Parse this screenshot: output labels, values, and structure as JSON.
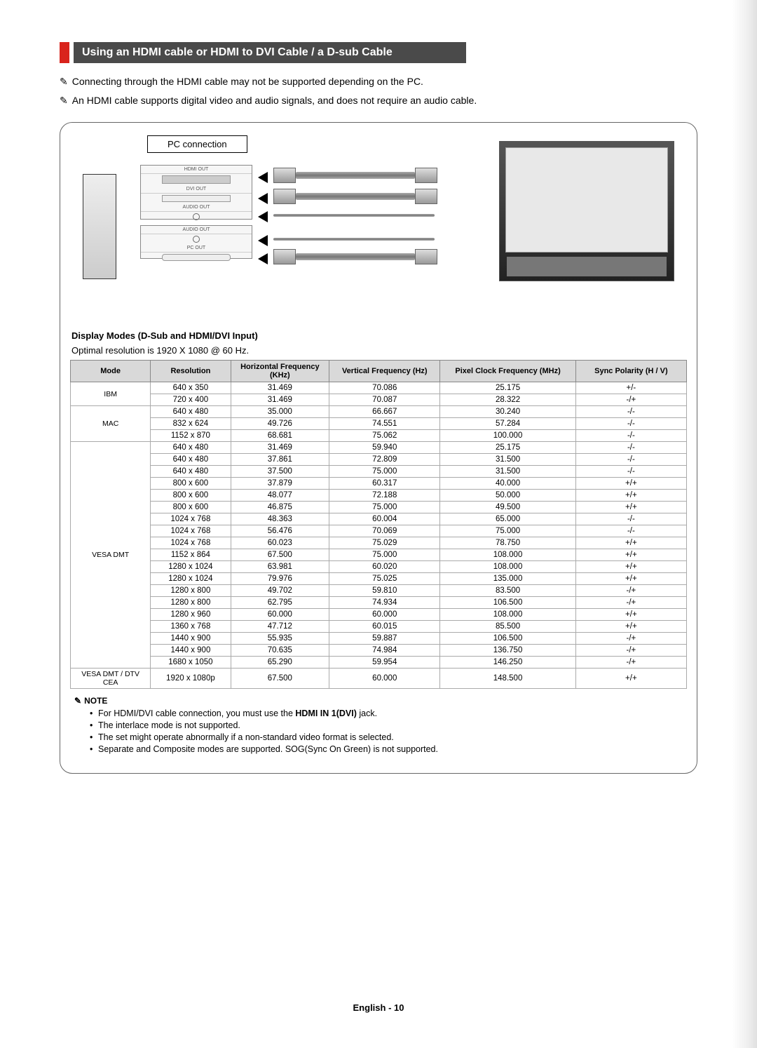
{
  "title": "Using an HDMI cable or HDMI to DVI Cable / a D-sub Cable",
  "intro_notes": [
    "Connecting through the HDMI cable may not be supported depending on the PC.",
    "An HDMI cable supports digital video and audio signals, and does not require an audio cable."
  ],
  "diagram": {
    "pc_connection_label": "PC connection",
    "ports": [
      "HDMI OUT",
      "DVI OUT",
      "AUDIO OUT",
      "AUDIO OUT",
      "PC OUT"
    ]
  },
  "display_modes_heading": "Display Modes (D-Sub and HDMI/DVI Input)",
  "optimal_text": "Optimal resolution is 1920 X 1080 @ 60 Hz.",
  "table": {
    "columns": [
      "Mode",
      "Resolution",
      "Horizontal Frequency (KHz)",
      "Vertical Frequency (Hz)",
      "Pixel Clock Frequency (MHz)",
      "Sync Polarity (H / V)"
    ],
    "groups": [
      {
        "mode": "IBM",
        "rows": [
          [
            "640 x 350",
            "31.469",
            "70.086",
            "25.175",
            "+/-"
          ],
          [
            "720 x 400",
            "31.469",
            "70.087",
            "28.322",
            "-/+"
          ]
        ]
      },
      {
        "mode": "MAC",
        "rows": [
          [
            "640 x 480",
            "35.000",
            "66.667",
            "30.240",
            "-/-"
          ],
          [
            "832 x 624",
            "49.726",
            "74.551",
            "57.284",
            "-/-"
          ],
          [
            "1152 x 870",
            "68.681",
            "75.062",
            "100.000",
            "-/-"
          ]
        ]
      },
      {
        "mode": "VESA DMT",
        "rows": [
          [
            "640 x 480",
            "31.469",
            "59.940",
            "25.175",
            "-/-"
          ],
          [
            "640 x 480",
            "37.861",
            "72.809",
            "31.500",
            "-/-"
          ],
          [
            "640 x 480",
            "37.500",
            "75.000",
            "31.500",
            "-/-"
          ],
          [
            "800 x 600",
            "37.879",
            "60.317",
            "40.000",
            "+/+"
          ],
          [
            "800 x 600",
            "48.077",
            "72.188",
            "50.000",
            "+/+"
          ],
          [
            "800 x 600",
            "46.875",
            "75.000",
            "49.500",
            "+/+"
          ],
          [
            "1024 x 768",
            "48.363",
            "60.004",
            "65.000",
            "-/-"
          ],
          [
            "1024 x 768",
            "56.476",
            "70.069",
            "75.000",
            "-/-"
          ],
          [
            "1024 x 768",
            "60.023",
            "75.029",
            "78.750",
            "+/+"
          ],
          [
            "1152 x 864",
            "67.500",
            "75.000",
            "108.000",
            "+/+"
          ],
          [
            "1280 x 1024",
            "63.981",
            "60.020",
            "108.000",
            "+/+"
          ],
          [
            "1280 x 1024",
            "79.976",
            "75.025",
            "135.000",
            "+/+"
          ],
          [
            "1280 x 800",
            "49.702",
            "59.810",
            "83.500",
            "-/+"
          ],
          [
            "1280 x 800",
            "62.795",
            "74.934",
            "106.500",
            "-/+"
          ],
          [
            "1280 x 960",
            "60.000",
            "60.000",
            "108.000",
            "+/+"
          ],
          [
            "1360 x 768",
            "47.712",
            "60.015",
            "85.500",
            "+/+"
          ],
          [
            "1440 x 900",
            "55.935",
            "59.887",
            "106.500",
            "-/+"
          ],
          [
            "1440 x 900",
            "70.635",
            "74.984",
            "136.750",
            "-/+"
          ],
          [
            "1680 x 1050",
            "65.290",
            "59.954",
            "146.250",
            "-/+"
          ]
        ]
      },
      {
        "mode": "VESA DMT / DTV CEA",
        "rows": [
          [
            "1920 x 1080p",
            "67.500",
            "60.000",
            "148.500",
            "+/+"
          ]
        ]
      }
    ],
    "col_widths": [
      "13%",
      "13%",
      "16%",
      "18%",
      "22%",
      "18%"
    ],
    "header_bg": "#d9d9d9",
    "border_color": "#aaaaaa"
  },
  "note_label": "NOTE",
  "notes": [
    "For HDMI/DVI cable connection, you must use the HDMI IN 1(DVI) jack.",
    "The interlace mode is not supported.",
    "The set might operate abnormally if a non-standard video format is selected.",
    "Separate and Composite modes are supported. SOG(Sync On Green) is not supported."
  ],
  "note_bold_phrase": "HDMI IN 1(DVI)",
  "footer": "English - 10",
  "colors": {
    "accent": "#d9241c",
    "title_bg": "#4a4a4a"
  }
}
